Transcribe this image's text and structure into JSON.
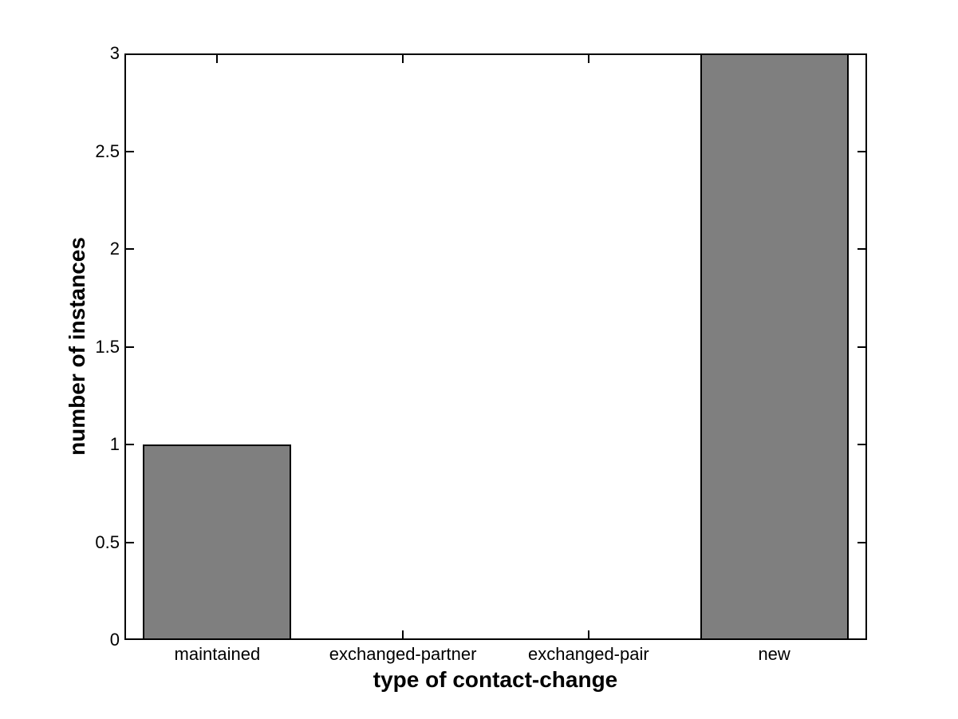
{
  "figure": {
    "background": "#ffffff"
  },
  "chart_data": {
    "type": "bar",
    "title": "",
    "categories": [
      "maintained",
      "exchanged-partner",
      "exchanged-pair",
      "new"
    ],
    "values": [
      1,
      0,
      0,
      3
    ],
    "xlabel": "type of contact-change",
    "ylabel": "number of instances",
    "ylim": [
      0,
      3
    ],
    "yticks": [
      0,
      0.5,
      1,
      1.5,
      2,
      2.5,
      3
    ],
    "ytick_labels": [
      "0",
      "0.5",
      "1",
      "1.5",
      "2",
      "2.5",
      "3"
    ],
    "xlim_data_units": [
      0.5,
      4.5
    ],
    "bar_width_fraction": 0.8,
    "bar_color": "#7f7f7f",
    "bar_edge_color": "#000000",
    "axis_color": "#000000",
    "grid": false,
    "legend": null
  }
}
